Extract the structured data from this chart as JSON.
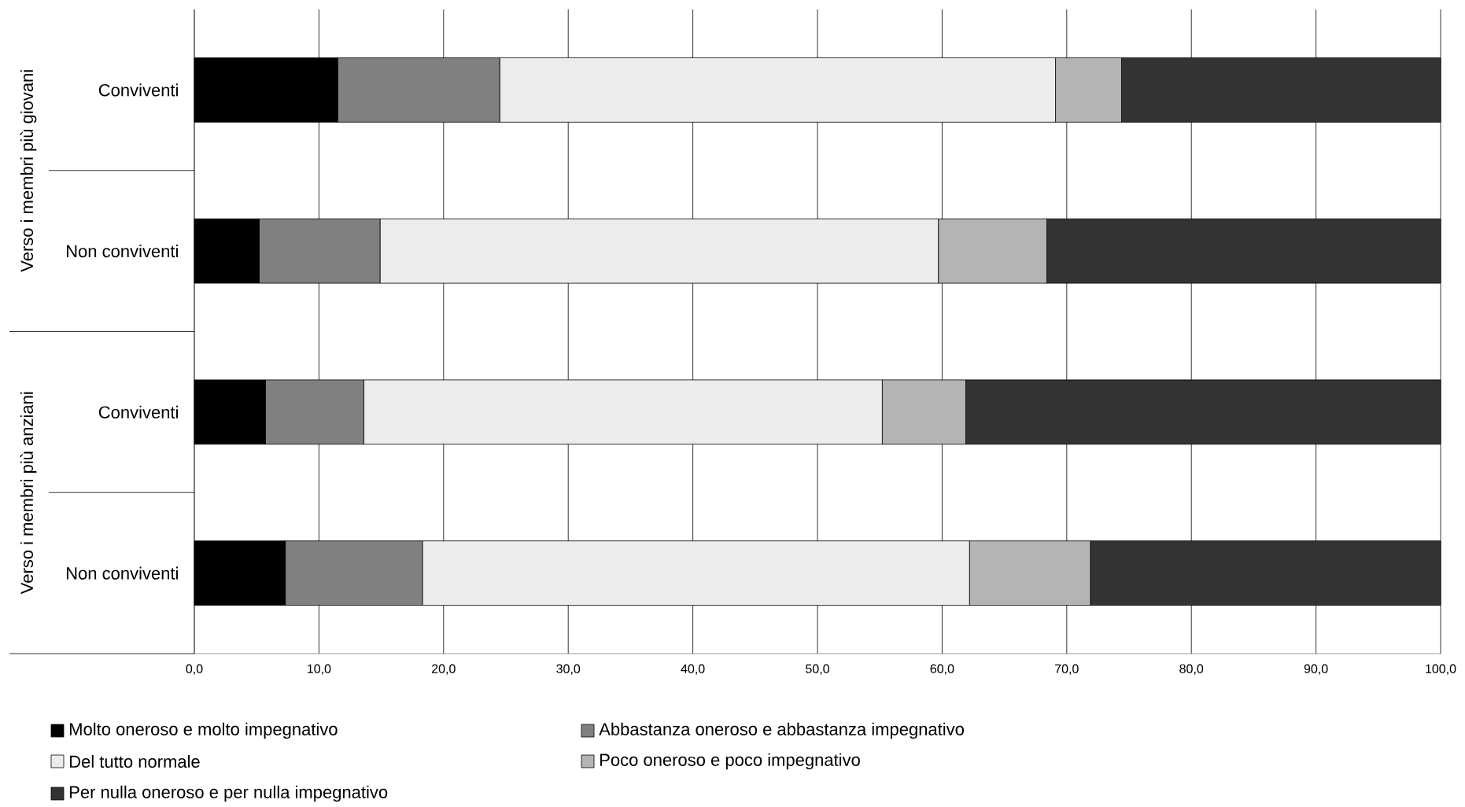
{
  "chart_data": {
    "type": "bar",
    "orientation": "horizontal",
    "stacked": true,
    "categories": [
      "Conviventi",
      "Non conviventi",
      "Conviventi",
      "Non conviventi"
    ],
    "annotations": [
      "Verso i membri più giovani",
      "Verso i membri più anziani"
    ],
    "series": [
      {
        "name": "Molto oneroso e molto impegnativo",
        "color": "#000000",
        "values": [
          11.5,
          5.2,
          5.7,
          7.3
        ]
      },
      {
        "name": "Abbastanza oneroso e abbastanza impegnativo",
        "color": "#808080",
        "values": [
          13.0,
          9.7,
          7.9,
          11.0
        ]
      },
      {
        "name": "Del tutto normale",
        "color": "#ececec",
        "values": [
          44.6,
          44.8,
          41.6,
          43.9
        ]
      },
      {
        "name": "Poco oneroso e poco impegnativo",
        "color": "#b4b4b4",
        "values": [
          5.3,
          8.7,
          6.7,
          9.7
        ]
      },
      {
        "name": "Per nulla oneroso e per nulla impegnativo",
        "color": "#333333",
        "values": [
          25.6,
          31.6,
          38.1,
          28.1
        ]
      }
    ],
    "xlim": [
      0,
      100
    ],
    "xticks": [
      {
        "value": 0,
        "label": "0,0"
      },
      {
        "value": 10,
        "label": "10,0"
      },
      {
        "value": 20,
        "label": "20,0"
      },
      {
        "value": 30,
        "label": "30,0"
      },
      {
        "value": 40,
        "label": "40,0"
      },
      {
        "value": 50,
        "label": "50,0"
      },
      {
        "value": 60,
        "label": "60,0"
      },
      {
        "value": 70,
        "label": "70,0"
      },
      {
        "value": 80,
        "label": "80,0"
      },
      {
        "value": 90,
        "label": "90,0"
      },
      {
        "value": 100,
        "label": "100,0"
      }
    ],
    "grid": "x",
    "legend": "bottom"
  }
}
